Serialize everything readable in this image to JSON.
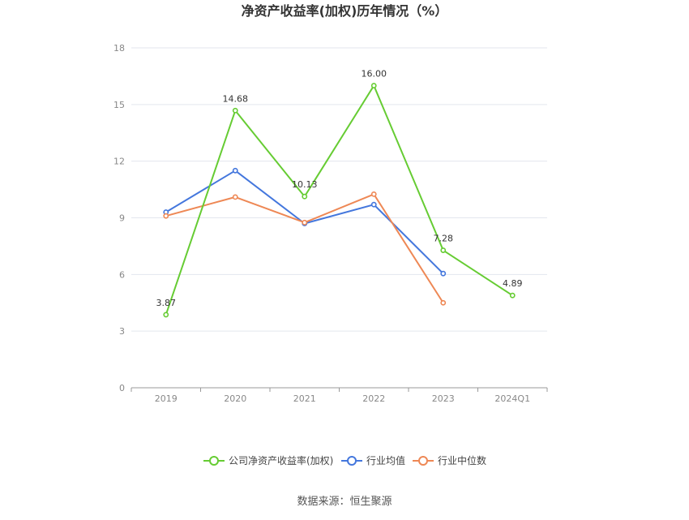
{
  "chart_data": {
    "type": "line",
    "title": "净资产收益率(加权)历年情况（%）",
    "xlabel": "",
    "ylabel": "",
    "categories": [
      "2019",
      "2020",
      "2021",
      "2022",
      "2023",
      "2024Q1"
    ],
    "ylim": [
      0,
      18
    ],
    "yticks": [
      0,
      3,
      6,
      9,
      12,
      15,
      18
    ],
    "grid": true,
    "legend_position": "bottom",
    "series": [
      {
        "name": "公司净资产收益率(加权)",
        "color": "#66cc33",
        "values": [
          3.87,
          14.68,
          10.13,
          16.0,
          7.28,
          4.89
        ],
        "labels": [
          "3.87",
          "14.68",
          "10.13",
          "16.00",
          "7.28",
          "4.89"
        ]
      },
      {
        "name": "行业均值",
        "color": "#4477dd",
        "values": [
          9.3,
          11.5,
          8.7,
          9.7,
          6.05,
          null
        ]
      },
      {
        "name": "行业中位数",
        "color": "#ee8855",
        "values": [
          9.1,
          10.1,
          8.75,
          10.25,
          4.5,
          null
        ]
      }
    ]
  },
  "source": "数据来源：恒生聚源"
}
